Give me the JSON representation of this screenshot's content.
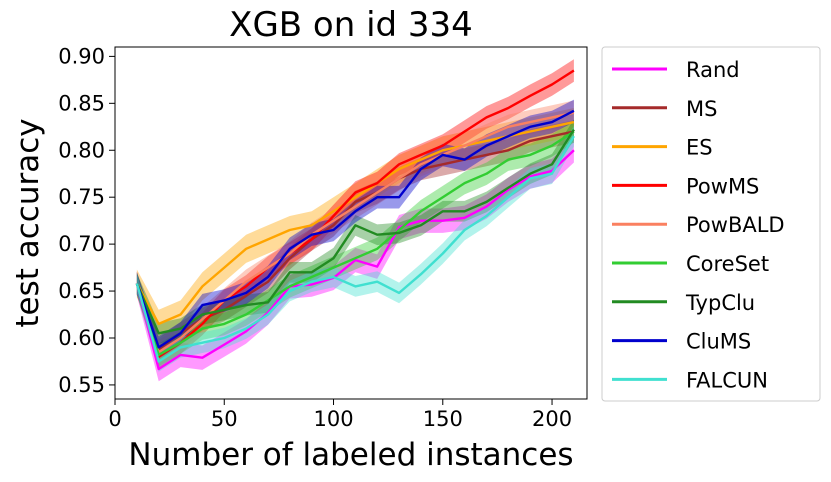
{
  "chart_data": {
    "type": "line",
    "title": "XGB on id 334",
    "xlabel": "Number of labeled instances",
    "ylabel": "test accuracy",
    "xlim": [
      0,
      216
    ],
    "ylim": [
      0.535,
      0.91
    ],
    "xticks": [
      0,
      50,
      100,
      150,
      200
    ],
    "yticks": [
      0.55,
      0.6,
      0.65,
      0.7,
      0.75,
      0.8,
      0.85,
      0.9
    ],
    "ytick_labels": [
      "0.55",
      "0.60",
      "0.65",
      "0.70",
      "0.75",
      "0.80",
      "0.85",
      "0.90"
    ],
    "grid": false,
    "legend_position": "outside-right",
    "x": [
      10,
      20,
      30,
      40,
      50,
      60,
      70,
      80,
      90,
      100,
      110,
      120,
      130,
      140,
      150,
      160,
      170,
      180,
      190,
      200,
      210
    ],
    "series": [
      {
        "name": "Rand",
        "color": "#ff00ff",
        "band": 0.013,
        "values": [
          0.658,
          0.567,
          0.582,
          0.579,
          0.593,
          0.607,
          0.627,
          0.655,
          0.657,
          0.664,
          0.683,
          0.676,
          0.718,
          0.725,
          0.725,
          0.728,
          0.74,
          0.758,
          0.772,
          0.778,
          0.8
        ]
      },
      {
        "name": "MS",
        "color": "#a52a2a",
        "band": 0.012,
        "values": [
          0.658,
          0.588,
          0.605,
          0.62,
          0.63,
          0.645,
          0.66,
          0.685,
          0.705,
          0.72,
          0.745,
          0.755,
          0.77,
          0.78,
          0.785,
          0.79,
          0.795,
          0.8,
          0.81,
          0.815,
          0.82
        ]
      },
      {
        "name": "ES",
        "color": "#ffa500",
        "band": 0.015,
        "values": [
          0.658,
          0.615,
          0.625,
          0.655,
          0.675,
          0.695,
          0.705,
          0.715,
          0.72,
          0.735,
          0.75,
          0.765,
          0.78,
          0.79,
          0.8,
          0.805,
          0.81,
          0.815,
          0.82,
          0.825,
          0.83
        ]
      },
      {
        "name": "PowMS",
        "color": "#ff0000",
        "band": 0.012,
        "values": [
          0.658,
          0.58,
          0.595,
          0.615,
          0.64,
          0.655,
          0.675,
          0.69,
          0.705,
          0.73,
          0.755,
          0.765,
          0.785,
          0.795,
          0.805,
          0.82,
          0.835,
          0.845,
          0.858,
          0.87,
          0.885
        ]
      },
      {
        "name": "PowBALD",
        "color": "#fa8060",
        "band": 0.013,
        "values": [
          0.658,
          0.585,
          0.6,
          0.62,
          0.64,
          0.66,
          0.675,
          0.69,
          0.71,
          0.725,
          0.74,
          0.755,
          0.77,
          0.785,
          0.795,
          0.805,
          0.815,
          0.825,
          0.83,
          0.835,
          0.84
        ]
      },
      {
        "name": "CoreSet",
        "color": "#32cd32",
        "band": 0.012,
        "values": [
          0.658,
          0.582,
          0.595,
          0.61,
          0.615,
          0.625,
          0.64,
          0.655,
          0.665,
          0.675,
          0.685,
          0.695,
          0.715,
          0.735,
          0.75,
          0.765,
          0.775,
          0.79,
          0.795,
          0.805,
          0.82
        ]
      },
      {
        "name": "TypClu",
        "color": "#228b22",
        "band": 0.011,
        "values": [
          0.658,
          0.605,
          0.61,
          0.625,
          0.63,
          0.635,
          0.638,
          0.67,
          0.67,
          0.685,
          0.72,
          0.71,
          0.712,
          0.72,
          0.735,
          0.735,
          0.745,
          0.76,
          0.775,
          0.785,
          0.822
        ]
      },
      {
        "name": "CluMS",
        "color": "#0000cd",
        "band": 0.012,
        "values": [
          0.658,
          0.59,
          0.605,
          0.635,
          0.64,
          0.648,
          0.665,
          0.695,
          0.71,
          0.715,
          0.735,
          0.75,
          0.75,
          0.78,
          0.795,
          0.79,
          0.805,
          0.815,
          0.825,
          0.83,
          0.842
        ]
      },
      {
        "name": "FALCUN",
        "color": "#40e0d0",
        "band": 0.011,
        "values": [
          0.658,
          0.575,
          0.59,
          0.595,
          0.6,
          0.61,
          0.625,
          0.65,
          0.66,
          0.665,
          0.655,
          0.66,
          0.648,
          0.668,
          0.69,
          0.715,
          0.73,
          0.75,
          0.77,
          0.775,
          0.815
        ]
      }
    ]
  }
}
